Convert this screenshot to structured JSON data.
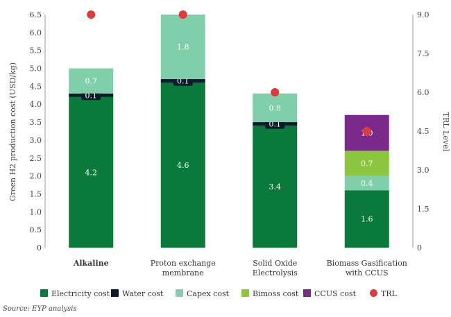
{
  "chart_data": {
    "type": "bar",
    "stacked": true,
    "categories": [
      "Alkaline",
      "Proton exchange membrane",
      "Solid Oxide Electrolysis",
      "Biomass Gasification with CCUS"
    ],
    "category_lines": [
      [
        "Alkaline"
      ],
      [
        "Proton exchange",
        "membrane"
      ],
      [
        "Solid Oxide",
        "Electrolysis"
      ],
      [
        "Biomass Gasification",
        "with CCUS"
      ]
    ],
    "series": [
      {
        "name": "Electricity cost",
        "color": "#0a7a3a",
        "values": [
          4.2,
          4.6,
          3.4,
          1.6
        ],
        "labels": [
          "4.2",
          "4.6",
          "3.4",
          "1.6"
        ]
      },
      {
        "name": "Water cost",
        "color": "#0c1b2a",
        "values": [
          0.1,
          0.1,
          0.1,
          0
        ],
        "labels": [
          "0.1",
          "0.1",
          "0.1",
          ""
        ]
      },
      {
        "name": "Capex cost",
        "color": "#7fd0a8",
        "values": [
          0.7,
          1.8,
          0.8,
          0.4
        ],
        "labels": [
          "0.7",
          "1.8",
          "0.8",
          "0.4"
        ]
      },
      {
        "name": "Bimoss cost",
        "color": "#8cc63f",
        "values": [
          0,
          0,
          0,
          0.7
        ],
        "labels": [
          "",
          "",
          "",
          "0.7"
        ]
      },
      {
        "name": "CCUS cost",
        "color": "#7b2a8c",
        "values": [
          0,
          0,
          0,
          1.0
        ],
        "labels": [
          "",
          "",
          "",
          "1.0"
        ]
      }
    ],
    "trl": {
      "name": "TRL",
      "color": "#e03a3a",
      "values": [
        9.0,
        9.0,
        6.0,
        4.5
      ]
    },
    "ylabel": "Green H2 production cost (USD/kg)",
    "ylim": [
      0,
      6.5
    ],
    "yticks": [
      "0",
      "0.5",
      "1.0",
      "1.5",
      "2.0",
      "2.5",
      "3.0",
      "3.5",
      "4.0",
      "4.5",
      "5.0",
      "5.5",
      "6.0",
      "6.5"
    ],
    "y2label": "TRL Level",
    "y2lim": [
      0,
      9.0
    ],
    "y2ticks": [
      "0",
      "1.5",
      "3.0",
      "4.5",
      "6.0",
      "7.5",
      "9.0"
    ],
    "legend_position": "bottom",
    "grid": false
  },
  "source_text": "Source: EYP analysis"
}
